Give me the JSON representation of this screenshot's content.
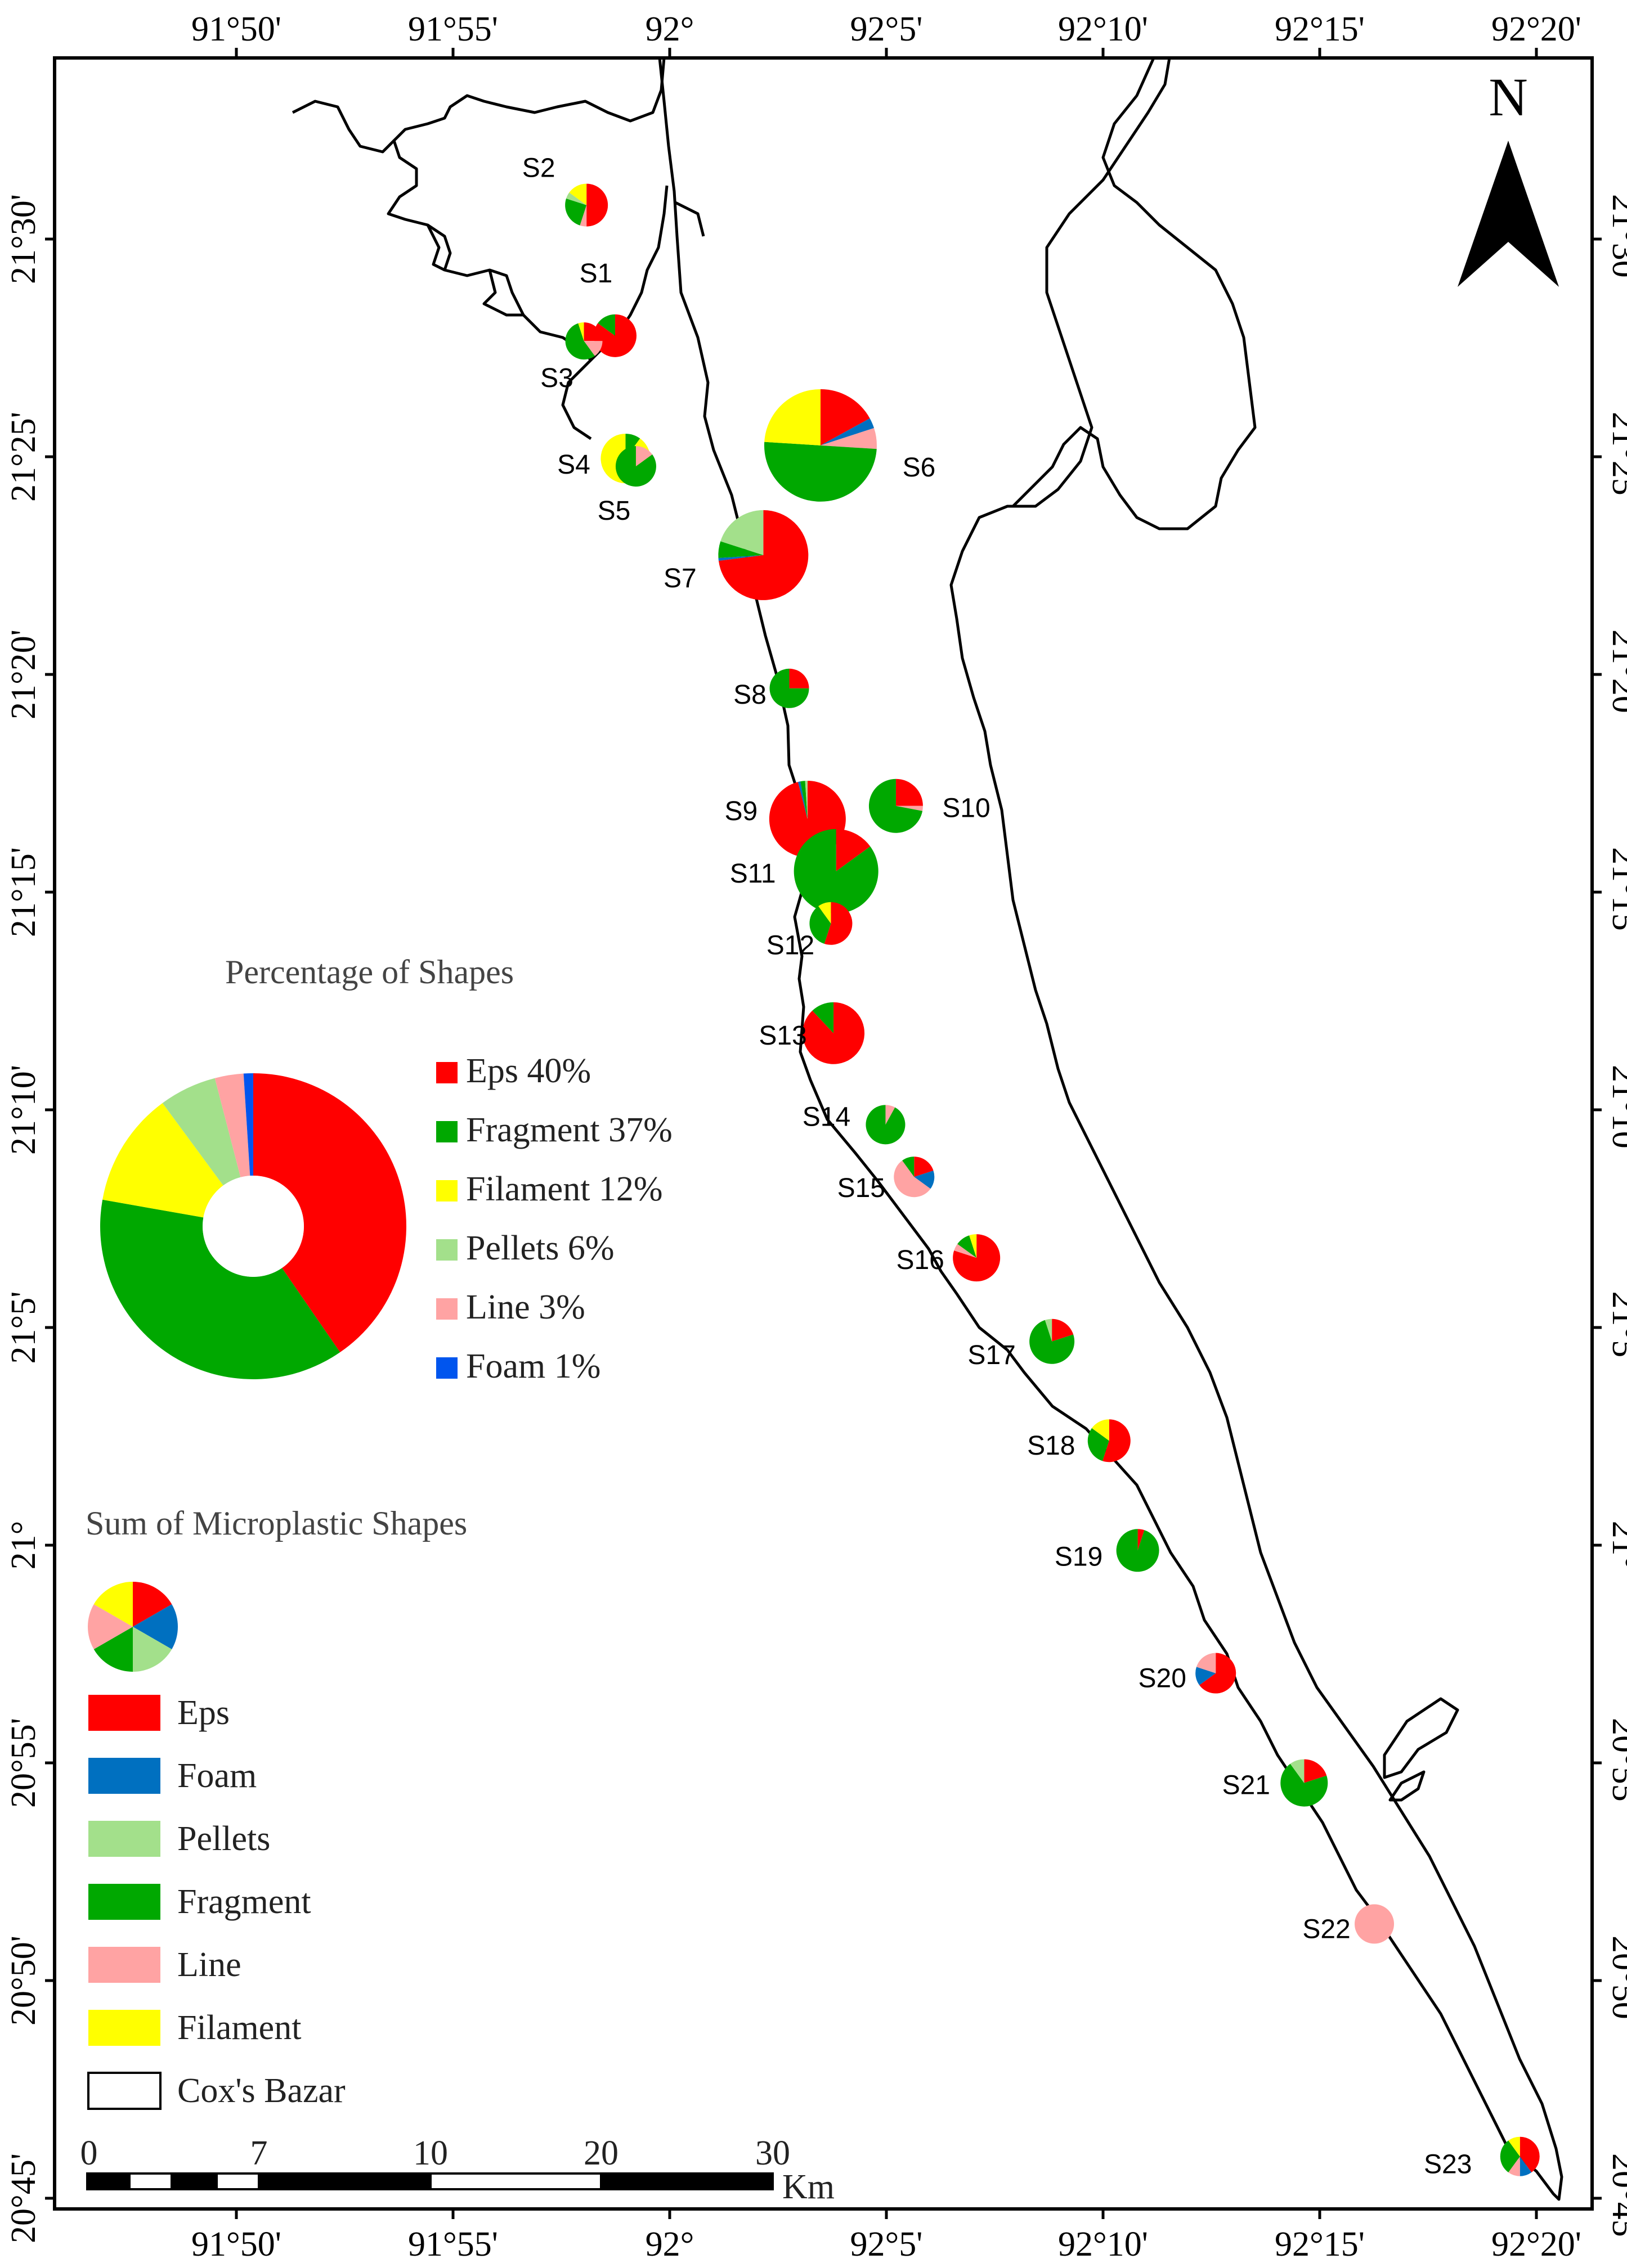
{
  "map": {
    "north_arrow_label": "N",
    "top_axis_labels": [
      "91°50'",
      "91°55'",
      "92°",
      "92°5'",
      "92°10'",
      "92°15'",
      "92°20'"
    ],
    "bottom_axis_labels": [
      "91°50'",
      "91°55'",
      "92°",
      "92°5'",
      "92°10'",
      "92°15'",
      "92°20'"
    ],
    "left_axis_labels": [
      "21°30'",
      "21°25'",
      "21°20'",
      "21°15'",
      "21°10'",
      "21°5'",
      "21°",
      "20°55'",
      "20°50'",
      "20°45'"
    ],
    "right_axis_labels": [
      "21°30'",
      "21°25'",
      "21°20'",
      "21°15'",
      "21°10'",
      "21°5'",
      "21°",
      "20°55'",
      "20°50'",
      "20°45'"
    ]
  },
  "colors": {
    "eps": "#ff0000",
    "fragment": "#00a800",
    "filament": "#ffff00",
    "pellets": "#a3e08b",
    "line": "#ffa3a3",
    "foam": "#0070c0"
  },
  "sites": [
    {
      "label": "S1",
      "lon": 91.979,
      "lat": 21.463,
      "slices": {
        "eps": 85,
        "fragment": 15
      }
    },
    {
      "label": "S2",
      "lon": 91.968,
      "lat": 21.513,
      "slices": {
        "eps": 50,
        "fragment": 25,
        "filament": 15,
        "pellets": 5,
        "line": 5
      }
    },
    {
      "label": "S3",
      "lon": 91.967,
      "lat": 21.461,
      "slices": {
        "eps": 25,
        "fragment": 55,
        "line": 15,
        "filament": 5
      }
    },
    {
      "label": "S4",
      "lon": 91.983,
      "lat": 21.416,
      "slices": {
        "fragment": 10,
        "filament": 90
      }
    },
    {
      "label": "S5",
      "lon": 91.987,
      "lat": 21.413,
      "slices": {
        "fragment": 85,
        "line": 15
      }
    },
    {
      "label": "S6",
      "lon": 92.058,
      "lat": 21.421,
      "slices": {
        "eps": 17,
        "foam": 3,
        "fragment": 50,
        "line": 6,
        "filament": 24
      }
    },
    {
      "label": "S7",
      "lon": 92.036,
      "lat": 21.379,
      "slices": {
        "eps": 73,
        "foam": 1,
        "pellets": 20,
        "fragment": 6
      }
    },
    {
      "label": "S8",
      "lon": 92.046,
      "lat": 21.328,
      "slices": {
        "eps": 25,
        "fragment": 75
      }
    },
    {
      "label": "S9",
      "lon": 92.053,
      "lat": 21.278,
      "slices": {
        "eps": 96,
        "fragment": 2,
        "foam": 1,
        "pellets": 1
      }
    },
    {
      "label": "S10",
      "lon": 92.087,
      "lat": 21.283,
      "slices": {
        "eps": 25,
        "fragment": 72,
        "line": 3
      }
    },
    {
      "label": "S11",
      "lon": 92.064,
      "lat": 21.258,
      "slices": {
        "eps": 15,
        "fragment": 85
      }
    },
    {
      "label": "S12",
      "lon": 92.062,
      "lat": 21.238,
      "slices": {
        "eps": 55,
        "fragment": 35,
        "filament": 10
      }
    },
    {
      "label": "S13",
      "lon": 92.063,
      "lat": 21.196,
      "slices": {
        "eps": 88,
        "fragment": 12
      }
    },
    {
      "label": "S14",
      "lon": 92.083,
      "lat": 21.161,
      "slices": {
        "fragment": 92,
        "line": 8
      }
    },
    {
      "label": "S15",
      "lon": 92.094,
      "lat": 21.141,
      "slices": {
        "eps": 20,
        "foam": 15,
        "fragment": 10,
        "line": 55
      }
    },
    {
      "label": "S16",
      "lon": 92.118,
      "lat": 21.11,
      "slices": {
        "eps": 80,
        "fragment": 10,
        "line": 5,
        "filament": 5
      }
    },
    {
      "label": "S17",
      "lon": 92.147,
      "lat": 21.078,
      "slices": {
        "eps": 20,
        "pellets": 5,
        "fragment": 75
      }
    },
    {
      "label": "S18",
      "lon": 92.169,
      "lat": 21.04,
      "slices": {
        "eps": 55,
        "fragment": 30,
        "filament": 15
      }
    },
    {
      "label": "S19",
      "lon": 92.18,
      "lat": 20.998,
      "slices": {
        "eps": 5,
        "fragment": 95
      }
    },
    {
      "label": "S20",
      "lon": 92.21,
      "lat": 20.951,
      "slices": {
        "eps": 65,
        "foam": 15,
        "line": 20
      }
    },
    {
      "label": "S21",
      "lon": 92.244,
      "lat": 20.909,
      "slices": {
        "eps": 20,
        "pellets": 10,
        "fragment": 70
      }
    },
    {
      "label": "S22",
      "lon": 92.271,
      "lat": 20.855,
      "slices": {
        "line": 100
      }
    },
    {
      "label": "S23",
      "lon": 92.327,
      "lat": 20.766,
      "slices": {
        "eps": 40,
        "foam": 10,
        "fragment": 30,
        "line": 10,
        "filament": 10
      }
    }
  ],
  "percentage_legend": {
    "title": "Percentage of Shapes",
    "items": [
      {
        "label": "Eps 40%",
        "value": 40,
        "color": "#ff0000"
      },
      {
        "label": "Fragment 37%",
        "value": 37,
        "color": "#00a800"
      },
      {
        "label": "Filament 12%",
        "value": 12,
        "color": "#ffff00"
      },
      {
        "label": "Pellets 6%",
        "value": 6,
        "color": "#a3e08b"
      },
      {
        "label": "Line 3%",
        "value": 3,
        "color": "#ffa3a3"
      },
      {
        "label": "Foam 1%",
        "value": 1,
        "color": "#0055ee"
      }
    ]
  },
  "sum_legend": {
    "title": "Sum of Microplastic Shapes",
    "items": [
      {
        "label": "Eps",
        "color": "#ff0000"
      },
      {
        "label": "Foam",
        "color": "#0070c0"
      },
      {
        "label": "Pellets",
        "color": "#a3e08b"
      },
      {
        "label": "Fragment",
        "color": "#00a800"
      },
      {
        "label": "Line",
        "color": "#ffa3a3"
      },
      {
        "label": "Filament",
        "color": "#ffff00"
      },
      {
        "label": "Cox's Bazar",
        "color": "#ffffff"
      }
    ]
  },
  "scale_bar": {
    "labels": [
      "0",
      "7",
      "10",
      "20",
      "30"
    ],
    "unit": "Km"
  },
  "chart_data": {
    "type": "pie",
    "title": "Percentage of Shapes",
    "categories": [
      "Eps",
      "Fragment",
      "Filament",
      "Pellets",
      "Line",
      "Foam"
    ],
    "values": [
      40,
      37,
      12,
      6,
      3,
      1
    ]
  }
}
